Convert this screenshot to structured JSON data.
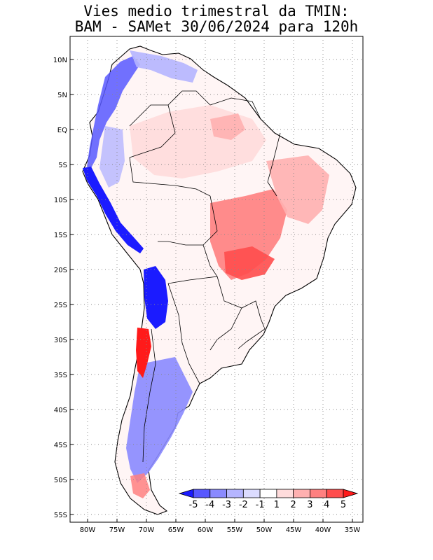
{
  "title": {
    "line1": "Vies medio trimestral da TMIN:",
    "line2": "BAM - SAMet 30/06/2024  para 120h"
  },
  "axes": {
    "lat_labels": [
      "10N",
      "5N",
      "EQ",
      "5S",
      "10S",
      "15S",
      "20S",
      "25S",
      "30S",
      "35S",
      "40S",
      "45S",
      "50S",
      "55S"
    ],
    "lon_labels": [
      "80W",
      "75W",
      "70W",
      "65W",
      "60W",
      "55W",
      "50W",
      "45W",
      "40W",
      "35W"
    ],
    "grid": "dotted"
  },
  "colorbar": {
    "labels": [
      "-5",
      "-4",
      "-3",
      "-2",
      "-1",
      "1",
      "2",
      "3",
      "4",
      "5"
    ],
    "colors": [
      "#1b1bff",
      "#5858ff",
      "#8a8aff",
      "#b5b5ff",
      "#dcdcff",
      "#ffffff",
      "#ffdcdc",
      "#ffb0b0",
      "#ff8080",
      "#ff4d4d",
      "#ff1a1a"
    ],
    "placement": "bottom-right inside map"
  },
  "colors": {
    "land_outline": "#000000",
    "grid": "#888888"
  }
}
